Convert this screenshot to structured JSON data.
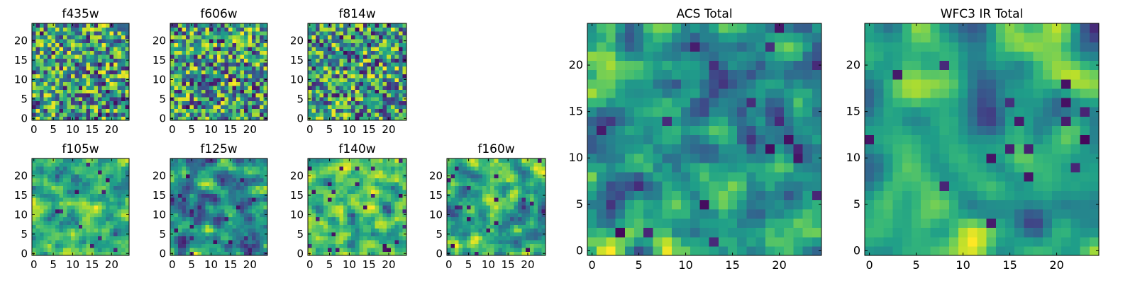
{
  "chart_data": [
    {
      "type": "heatmap",
      "title": "f435w",
      "size": 25,
      "xticks": [
        0,
        5,
        10,
        15,
        20
      ],
      "yticks": [
        0,
        5,
        10,
        15,
        20
      ],
      "xlim": [
        -0.5,
        24.5
      ],
      "ylim": [
        -0.5,
        24.5
      ],
      "style": "noise"
    },
    {
      "type": "heatmap",
      "title": "f606w",
      "size": 25,
      "xticks": [
        0,
        5,
        10,
        15,
        20
      ],
      "yticks": [
        0,
        5,
        10,
        15,
        20
      ],
      "xlim": [
        -0.5,
        24.5
      ],
      "ylim": [
        -0.5,
        24.5
      ],
      "style": "noise"
    },
    {
      "type": "heatmap",
      "title": "f814w",
      "size": 25,
      "xticks": [
        0,
        5,
        10,
        15,
        20
      ],
      "yticks": [
        0,
        5,
        10,
        15,
        20
      ],
      "xlim": [
        -0.5,
        24.5
      ],
      "ylim": [
        -0.5,
        24.5
      ],
      "style": "noise"
    },
    {
      "type": "heatmap",
      "title": "f105w",
      "size": 25,
      "xticks": [
        0,
        5,
        10,
        15,
        20
      ],
      "yticks": [
        0,
        5,
        10,
        15,
        20
      ],
      "xlim": [
        -0.5,
        24.5
      ],
      "ylim": [
        -0.5,
        24.5
      ],
      "style": "bright"
    },
    {
      "type": "heatmap",
      "title": "f125w",
      "size": 25,
      "xticks": [
        0,
        5,
        10,
        15,
        20
      ],
      "yticks": [
        0,
        5,
        10,
        15,
        20
      ],
      "xlim": [
        -0.5,
        24.5
      ],
      "ylim": [
        -0.5,
        24.5
      ],
      "style": "mixed"
    },
    {
      "type": "heatmap",
      "title": "f140w",
      "size": 25,
      "xticks": [
        0,
        5,
        10,
        15,
        20
      ],
      "yticks": [
        0,
        5,
        10,
        15,
        20
      ],
      "xlim": [
        -0.5,
        24.5
      ],
      "ylim": [
        -0.5,
        24.5
      ],
      "style": "bright"
    },
    {
      "type": "heatmap",
      "title": "f160w",
      "size": 25,
      "xticks": [
        0,
        5,
        10,
        15,
        20
      ],
      "yticks": [
        0,
        5,
        10,
        15,
        20
      ],
      "xlim": [
        -0.5,
        24.5
      ],
      "ylim": [
        -0.5,
        24.5
      ],
      "style": "mixed"
    },
    {
      "type": "heatmap",
      "title": "ACS Total",
      "size": 25,
      "xticks": [
        0,
        5,
        10,
        15,
        20
      ],
      "yticks": [
        0,
        5,
        10,
        15,
        20
      ],
      "xlim": [
        -0.5,
        24.5
      ],
      "ylim": [
        -0.5,
        24.5
      ],
      "style": "medium"
    },
    {
      "type": "heatmap",
      "title": "WFC3 IR Total",
      "size": 25,
      "xticks": [
        0,
        5,
        10,
        15,
        20
      ],
      "yticks": [
        0,
        5,
        10,
        15,
        20
      ],
      "xlim": [
        -0.5,
        24.5
      ],
      "ylim": [
        -0.5,
        24.5
      ],
      "style": "smooth"
    }
  ]
}
